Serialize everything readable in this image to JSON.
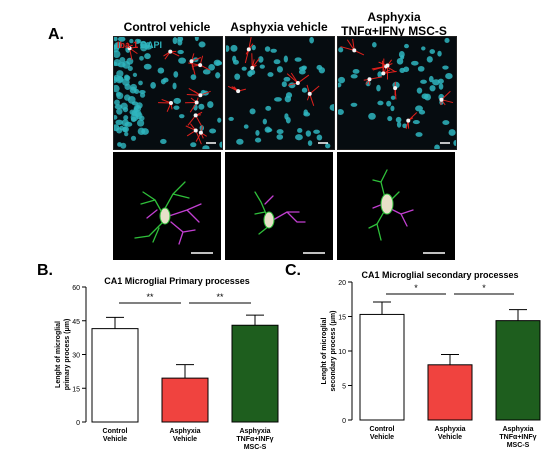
{
  "panel_labels": {
    "a": "A.",
    "b": "B.",
    "c": "C."
  },
  "columns": [
    {
      "title_line1": "Control vehicle",
      "title_line2": ""
    },
    {
      "title_line1": "Asphyxia vehicle",
      "title_line2": ""
    },
    {
      "title_line1": "Asphyxia",
      "title_line2": "TNFα+IFNγ MSC-S"
    }
  ],
  "stain_label": {
    "iba1": "Iba-1",
    "dapi": "DAPI"
  },
  "colors": {
    "iba1": "#e0201c",
    "dapi": "#2fb6bf",
    "control_bar": "#ffffff",
    "asphyxia_bar": "#f0433f",
    "treated_bar": "#1e5e1e",
    "recon_primary": "#2fbf3a",
    "recon_secondary": "#c23fd1"
  },
  "chart_data": [
    {
      "type": "bar",
      "title": "CA1 Microglial Primary processes",
      "ylabel": "Lenght of microglial primary process (μm)",
      "ylim": [
        0,
        60
      ],
      "yticks": [
        0,
        15,
        30,
        45,
        60
      ],
      "categories": [
        "Control Vehicle",
        "Asphyxia Vehicle",
        "Asphyxia TNFα+INFγ MSC-S"
      ],
      "category_lines": [
        [
          "Control",
          "Vehicle"
        ],
        [
          "Asphyxia",
          "Vehicle"
        ],
        [
          "Asphyxia",
          "TNFα+INFγ",
          "MSC-S"
        ]
      ],
      "values": [
        41.5,
        19.5,
        43
      ],
      "errors": [
        5,
        6,
        4.5
      ],
      "significance": [
        {
          "from": 0,
          "to": 1,
          "label": "**"
        },
        {
          "from": 1,
          "to": 2,
          "label": "**"
        }
      ]
    },
    {
      "type": "bar",
      "title": "CA1 Microglial secondary processes",
      "ylabel": "Lenght of microglial secondary process (μm)",
      "ylim": [
        0,
        20
      ],
      "yticks": [
        0,
        5,
        10,
        15,
        20
      ],
      "categories": [
        "Control Vehicle",
        "Asphyxia Vehicle",
        "Asphyxia TNFα+INFγ MSC-S"
      ],
      "category_lines": [
        [
          "Control",
          "Vehicle"
        ],
        [
          "Asphyxia",
          "Vehicle"
        ],
        [
          "Asphyxia",
          "TNFα+INFγ",
          "MSC-S"
        ]
      ],
      "values": [
        15.3,
        8,
        14.4
      ],
      "errors": [
        1.8,
        1.5,
        1.6
      ],
      "significance": [
        {
          "from": 0,
          "to": 1,
          "label": "*"
        },
        {
          "from": 1,
          "to": 2,
          "label": "*"
        }
      ]
    }
  ]
}
